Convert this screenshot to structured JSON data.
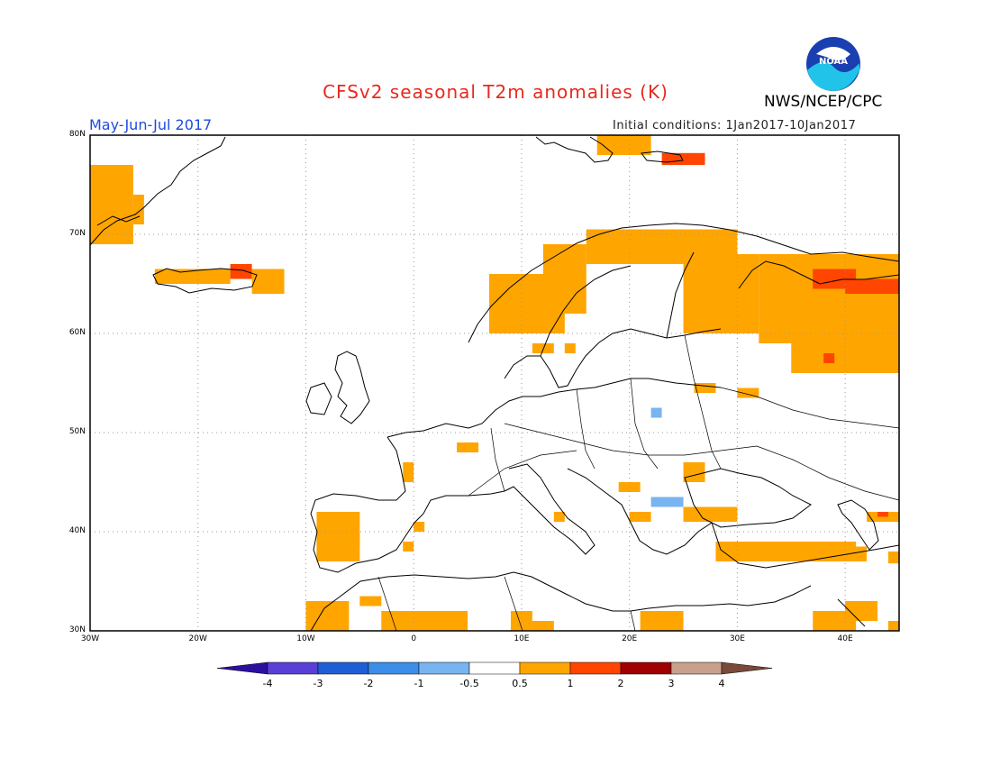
{
  "header": {
    "title": "CFSv2 seasonal T2m anomalies (K)",
    "organization": "NWS/NCEP/CPC",
    "season": "May-Jun-Jul 2017",
    "initial_conditions": "Initial conditions: 1Jan2017-10Jan2017"
  },
  "logo": {
    "icon": "noaa-logo-icon",
    "text": "NOAA"
  },
  "map": {
    "lat_range": [
      30,
      80
    ],
    "lon_range": [
      -30,
      45
    ],
    "lat_labels": [
      "80N",
      "70N",
      "60N",
      "50N",
      "40N",
      "30N"
    ],
    "lon_labels": [
      "30W",
      "20W",
      "10W",
      "0",
      "10E",
      "20E",
      "30E",
      "40E"
    ],
    "colors": {
      "light_orange": "#ffa500",
      "red_orange": "#ff4500",
      "light_blue": "#78b4f0",
      "coast": "#000000",
      "grid": "#999999"
    }
  },
  "legend": {
    "labels": [
      "-4",
      "-3",
      "-2",
      "-1",
      "-0.5",
      "0.5",
      "1",
      "2",
      "3",
      "4"
    ],
    "colors": [
      "#2d0fa0",
      "#5a3fd6",
      "#1f5fd6",
      "#3c8ee8",
      "#78b4f0",
      "#ffffff",
      "#ffa500",
      "#ff4500",
      "#a00000",
      "#c8a08c",
      "#7a4a3a"
    ]
  }
}
